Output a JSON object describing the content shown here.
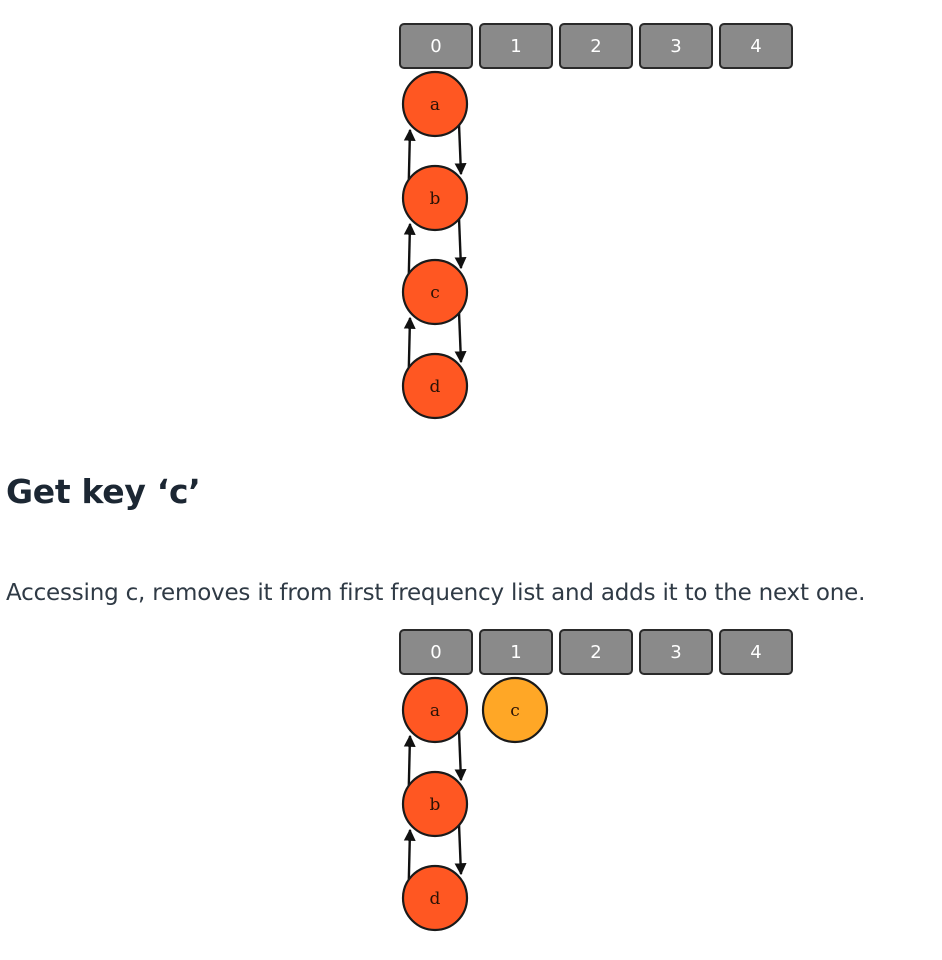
{
  "diagrams": [
    {
      "buckets": [
        "0",
        "1",
        "2",
        "3",
        "4"
      ],
      "lists": [
        {
          "bucket": 0,
          "nodes": [
            "a",
            "b",
            "c",
            "d"
          ],
          "color": "#ff5722"
        }
      ]
    },
    {
      "buckets": [
        "0",
        "1",
        "2",
        "3",
        "4"
      ],
      "lists": [
        {
          "bucket": 0,
          "nodes": [
            "a",
            "b",
            "d"
          ],
          "color": "#ff5722"
        },
        {
          "bucket": 1,
          "nodes": [
            "c"
          ],
          "color": "#ffa726"
        }
      ]
    }
  ],
  "heading": "Get key ‘c’",
  "paragraph": "Accessing c, removes it from first frequency list and adds it to the next one."
}
